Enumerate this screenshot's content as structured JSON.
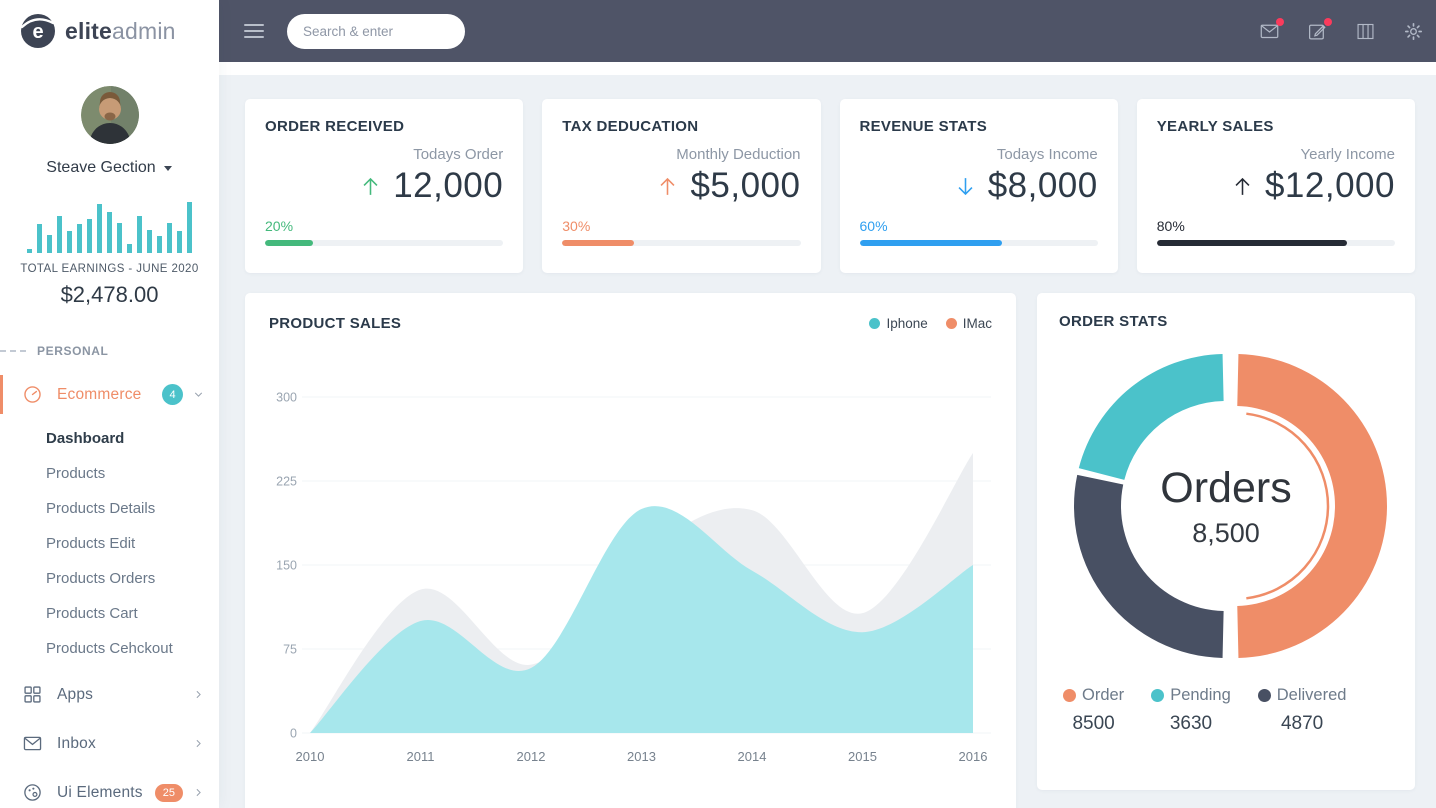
{
  "colors": {
    "navbar_bg": "#4f5467",
    "main_bg": "#edf1f5",
    "accent_orange": "#ef8d68",
    "accent_teal": "#4bc2ca",
    "accent_green": "#44b97c",
    "accent_blue": "#2f9ff0",
    "accent_dark": "#262b35",
    "notification_dot": "#fb3b5c"
  },
  "logo": {
    "bold": "elite",
    "light": "admin"
  },
  "navbar": {
    "search_placeholder": "Search & enter"
  },
  "sidebar": {
    "user": {
      "name": "Steave Gection"
    },
    "earnings": {
      "label": "TOTAL EARNINGS - JUNE 2020",
      "amount": "$2,478.00",
      "sparkline": [
        8,
        55,
        35,
        72,
        42,
        55,
        65,
        95,
        78,
        58,
        18,
        72,
        45,
        32,
        58,
        42,
        98
      ]
    },
    "section_label": "PERSONAL",
    "ecommerce": {
      "label": "Ecommerce",
      "badge": "4"
    },
    "submenu": [
      "Dashboard",
      "Products",
      "Products Details",
      "Products Edit",
      "Products Orders",
      "Products Cart",
      "Products Cehckout"
    ],
    "apps_label": "Apps",
    "inbox_label": "Inbox",
    "ui_elements": {
      "label": "Ui Elements",
      "badge": "25"
    }
  },
  "cards": [
    {
      "title": "ORDER RECEIVED",
      "subtitle": "Todays Order",
      "value": "12,000",
      "trend": "up",
      "percent": "20%",
      "color": "#44b97c"
    },
    {
      "title": "TAX DEDUCATION",
      "subtitle": "Monthly Deduction",
      "value": "$5,000",
      "trend": "up",
      "percent": "30%",
      "color": "#ef8d68"
    },
    {
      "title": "REVENUE STATS",
      "subtitle": "Todays Income",
      "value": "$8,000",
      "trend": "down",
      "percent": "60%",
      "color": "#2f9ff0"
    },
    {
      "title": "YEARLY SALES",
      "subtitle": "Yearly Income",
      "value": "$12,000",
      "trend": "up",
      "percent": "80%",
      "color": "#262b35"
    }
  ],
  "chart_data": [
    {
      "type": "area",
      "title": "PRODUCT SALES",
      "x": [
        "2010",
        "2011",
        "2012",
        "2013",
        "2014",
        "2015",
        "2016"
      ],
      "series": [
        {
          "name": "Iphone",
          "values": [
            0,
            100,
            58,
            200,
            145,
            90,
            150
          ],
          "fill": "#a7e7ec",
          "legend_color": "#4bc2ca"
        },
        {
          "name": "IMac",
          "values": [
            0,
            128,
            61,
            160,
            199,
            107,
            250
          ],
          "fill": "#eceef1",
          "legend_color": "#ef8d68"
        }
      ],
      "yticks": [
        0,
        75,
        150,
        225,
        300
      ],
      "ylim": [
        0,
        300
      ],
      "grid": true,
      "legend_position": "top-right"
    },
    {
      "type": "donut",
      "title": "ORDER STATS",
      "center_label": "Orders",
      "center_value": "8,500",
      "series": [
        {
          "name": "Order",
          "value": 8500,
          "color": "#ef8d68"
        },
        {
          "name": "Pending",
          "value": 3630,
          "color": "#4bc2ca"
        },
        {
          "name": "Delivered",
          "value": 4870,
          "color": "#485063"
        }
      ],
      "legend_position": "bottom"
    }
  ]
}
